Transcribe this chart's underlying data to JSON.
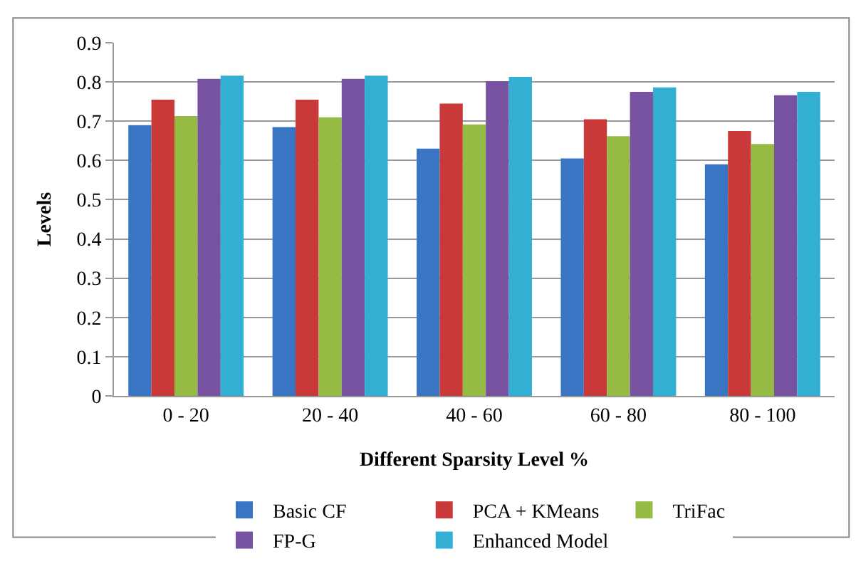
{
  "chart_data": {
    "type": "bar",
    "xlabel": "Different Sparsity Level %",
    "ylabel": "Levels",
    "categories": [
      "0 - 20",
      "20 - 40",
      "40 - 60",
      "60 - 80",
      "80 - 100"
    ],
    "series": [
      {
        "name": "Basic CF",
        "color": "#3a75c4",
        "values": [
          0.69,
          0.685,
          0.63,
          0.605,
          0.59
        ]
      },
      {
        "name": "PCA + KMeans",
        "color": "#c9393a",
        "values": [
          0.755,
          0.755,
          0.745,
          0.705,
          0.675
        ]
      },
      {
        "name": "TriFac",
        "color": "#96bb45",
        "values": [
          0.713,
          0.71,
          0.692,
          0.662,
          0.642
        ]
      },
      {
        "name": "FP-G",
        "color": "#7752a0",
        "values": [
          0.808,
          0.808,
          0.802,
          0.775,
          0.766
        ]
      },
      {
        "name": "Enhanced Model",
        "color": "#33afd4",
        "values": [
          0.816,
          0.816,
          0.813,
          0.786,
          0.775
        ]
      }
    ],
    "ylim": [
      0,
      0.9
    ],
    "yticks": [
      0,
      0.1,
      0.2,
      0.3,
      0.4,
      0.5,
      0.6,
      0.7,
      0.8,
      0.9
    ],
    "grid": "y",
    "legend": "bottom"
  }
}
